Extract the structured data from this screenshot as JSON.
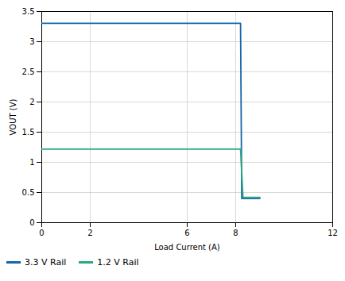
{
  "chart_data": {
    "type": "line",
    "series": [
      {
        "name": "3.3 V Rail",
        "color": "#1565a8",
        "x": [
          0,
          8.2,
          8.25,
          9.0
        ],
        "values": [
          3.305,
          3.305,
          0.4,
          0.4
        ]
      },
      {
        "name": "1.2 V Rail",
        "color": "#2aaa78",
        "x": [
          0,
          8.2,
          8.3,
          9.0
        ],
        "values": [
          1.22,
          1.22,
          0.42,
          0.42
        ]
      }
    ],
    "xlabel": "Load Current (A)",
    "ylabel": "VOUT (V)",
    "xlim": [
      0,
      12
    ],
    "ylim": [
      0,
      3.5
    ],
    "xticks": [
      0,
      2,
      6,
      8,
      12
    ],
    "yticks": [
      0,
      0.5,
      1,
      1.5,
      2,
      2.5,
      3,
      3.5
    ],
    "grid": true,
    "legend": "lower left"
  }
}
